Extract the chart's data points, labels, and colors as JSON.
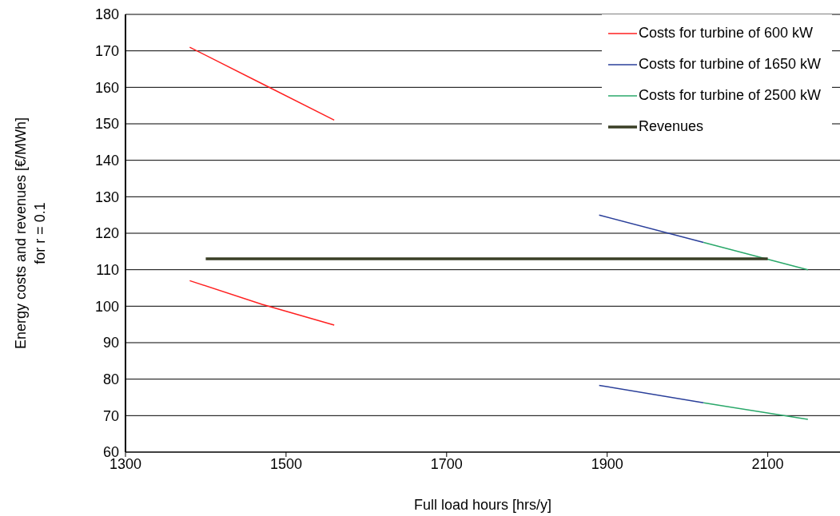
{
  "chart_data": {
    "type": "line",
    "xlabel": "Full load hours [hrs/y]",
    "ylabel": "Energy costs and revenues [€/MWh]\nfor r = 0.1",
    "xlim": [
      1300,
      2190
    ],
    "xticks": [
      1300,
      1500,
      1700,
      1900,
      2100
    ],
    "ylim": [
      60,
      180
    ],
    "yticks": [
      60,
      70,
      80,
      90,
      100,
      110,
      120,
      130,
      140,
      150,
      160,
      170,
      180
    ],
    "grid": "y",
    "legend": "top right",
    "marker": "none",
    "line_style": "solid",
    "series": [
      {
        "name": "Costs for turbine of 600 kW",
        "color": "#ff2020",
        "x": [
          1380,
          1470,
          1560
        ],
        "values": [
          171,
          161,
          151
        ]
      },
      {
        "color": "#ff2020",
        "x": [
          1380,
          1470,
          1560
        ],
        "values": [
          107,
          100.5,
          94.8
        ]
      },
      {
        "name": "Costs for turbine of 1650 kW",
        "color": "#2a3f9a",
        "x": [
          1890,
          2020
        ],
        "values": [
          125,
          117.5
        ]
      },
      {
        "color": "#2a3f9a",
        "x": [
          1890,
          2020
        ],
        "values": [
          78.3,
          73.5
        ]
      },
      {
        "name": "Costs for turbine of 2500 kW",
        "color": "#2aa86a",
        "x": [
          2020,
          2150
        ],
        "values": [
          117.5,
          110
        ]
      },
      {
        "color": "#2aa86a",
        "x": [
          2020,
          2150
        ],
        "values": [
          73.5,
          69
        ]
      },
      {
        "name": "Revenues",
        "color": "#3a3f26",
        "x": [
          1400,
          2100
        ],
        "values": [
          113,
          113
        ]
      }
    ]
  }
}
